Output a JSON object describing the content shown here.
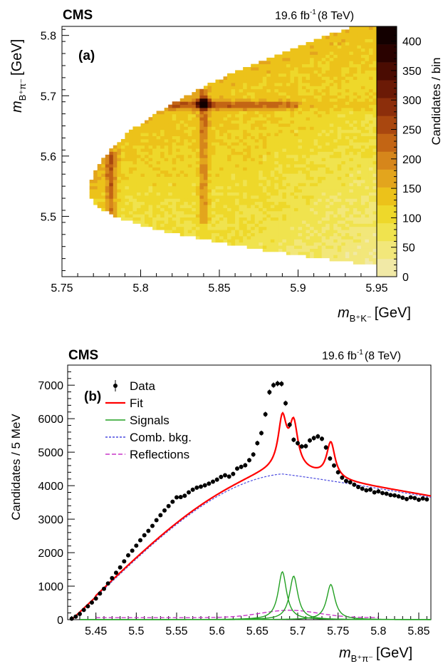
{
  "chart_data": [
    {
      "type": "heatmap",
      "panel_label": "(a)",
      "experiment": "CMS",
      "lumi": {
        "value": "19.6 fb",
        "exp": "-1",
        "energy": "(8 TeV)"
      },
      "x_axis": {
        "ticks": [
          "5.75",
          "5.8",
          "5.85",
          "5.9",
          "5.95"
        ],
        "range": [
          5.75,
          5.95
        ],
        "label_main": "m",
        "label_sub": "B⁺K⁻",
        "label_unit": "[GeV]"
      },
      "y_axis": {
        "ticks": [
          "5.5",
          "5.6",
          "5.7",
          "5.8"
        ],
        "range": [
          5.4,
          5.815
        ],
        "label_main": "m",
        "label_sub": "B⁺π⁻",
        "label_unit": "[GeV]"
      },
      "z_axis": {
        "label": "Candidates / bin",
        "ticks": [
          "0",
          "50",
          "100",
          "150",
          "200",
          "250",
          "300",
          "350",
          "400"
        ],
        "range": [
          0,
          425
        ]
      },
      "features": [
        {
          "desc": "vertical band",
          "x": 5.781,
          "y_range": [
            5.5,
            5.6
          ]
        },
        {
          "desc": "vertical band",
          "x": 5.84,
          "y_range": [
            5.5,
            5.7
          ]
        },
        {
          "desc": "horizontal band",
          "y": 5.685,
          "x_range": [
            5.8,
            5.89
          ]
        },
        {
          "desc": "peak",
          "x": 5.84,
          "y": 5.688,
          "z": 420
        }
      ]
    },
    {
      "type": "line",
      "panel_label": "(b)",
      "experiment": "CMS",
      "lumi": {
        "value": "19.6 fb",
        "exp": "-1",
        "energy": "(8 TeV)"
      },
      "x_axis": {
        "ticks": [
          "5.45",
          "5.5",
          "5.55",
          "5.6",
          "5.65",
          "5.7",
          "5.75",
          "5.8",
          "5.85"
        ],
        "range": [
          5.415,
          5.865
        ],
        "label_main": "m",
        "label_sub": "B⁺π⁻",
        "label_unit": "[GeV]"
      },
      "y_axis": {
        "ticks": [
          "0",
          "1000",
          "2000",
          "3000",
          "4000",
          "5000",
          "6000",
          "7000"
        ],
        "range": [
          0,
          7600
        ],
        "label": "Candidates / 5 MeV"
      },
      "legend": [
        {
          "name": "Data",
          "style": "marker",
          "color": "#000000"
        },
        {
          "name": "Fit",
          "style": "solid",
          "color": "#ff0000"
        },
        {
          "name": "Signals",
          "style": "solid",
          "color": "#22a022"
        },
        {
          "name": "Comb. bkg.",
          "style": "dashed",
          "color": "#4a4adf"
        },
        {
          "name": "Reflections",
          "style": "dashed",
          "color": "#c837c8"
        }
      ],
      "components": {
        "comb_bkg": {
          "rise_start": 5.42,
          "plateau_x": 5.68,
          "plateau_y": 4350,
          "tail_y_at_5865": 3650
        },
        "signals": [
          {
            "mass": 5.681,
            "width": 0.0125,
            "peak": 1430
          },
          {
            "mass": 5.695,
            "width": 0.0125,
            "peak": 1300
          },
          {
            "mass": 5.741,
            "width": 0.0125,
            "peak": 1050
          }
        ],
        "reflection": {
          "center": 5.69,
          "peak": 280,
          "base": 60
        }
      },
      "x": [
        5.42,
        5.425,
        5.43,
        5.435,
        5.44,
        5.445,
        5.45,
        5.455,
        5.46,
        5.465,
        5.47,
        5.475,
        5.48,
        5.485,
        5.49,
        5.495,
        5.5,
        5.505,
        5.51,
        5.515,
        5.52,
        5.525,
        5.53,
        5.535,
        5.54,
        5.545,
        5.55,
        5.555,
        5.56,
        5.565,
        5.57,
        5.575,
        5.58,
        5.585,
        5.59,
        5.595,
        5.6,
        5.605,
        5.61,
        5.615,
        5.62,
        5.625,
        5.63,
        5.635,
        5.64,
        5.645,
        5.65,
        5.655,
        5.66,
        5.665,
        5.67,
        5.675,
        5.68,
        5.685,
        5.69,
        5.695,
        5.7,
        5.705,
        5.71,
        5.715,
        5.72,
        5.725,
        5.73,
        5.735,
        5.74,
        5.745,
        5.75,
        5.755,
        5.76,
        5.765,
        5.77,
        5.775,
        5.78,
        5.785,
        5.79,
        5.795,
        5.8,
        5.805,
        5.81,
        5.815,
        5.82,
        5.825,
        5.83,
        5.835,
        5.84,
        5.845,
        5.85,
        5.855,
        5.86
      ],
      "y": [
        30,
        90,
        170,
        290,
        400,
        510,
        630,
        780,
        920,
        1080,
        1240,
        1400,
        1560,
        1740,
        1920,
        2060,
        2210,
        2370,
        2520,
        2650,
        2800,
        2970,
        3120,
        3260,
        3390,
        3520,
        3650,
        3660,
        3700,
        3800,
        3880,
        3940,
        3970,
        4010,
        4060,
        4120,
        4180,
        4260,
        4310,
        4270,
        4350,
        4510,
        4560,
        4610,
        4760,
        4930,
        5270,
        5570,
        6130,
        6790,
        7000,
        7050,
        7040,
        6460,
        5820,
        5370,
        5270,
        5170,
        5180,
        5350,
        5420,
        5470,
        5400,
        5140,
        4810,
        4600,
        4400,
        4240,
        4140,
        4100,
        4030,
        3960,
        3910,
        3860,
        3880,
        3800,
        3830,
        3780,
        3760,
        3720,
        3710,
        3680,
        3640,
        3600,
        3650,
        3630,
        3580,
        3620,
        3590
      ]
    }
  ]
}
